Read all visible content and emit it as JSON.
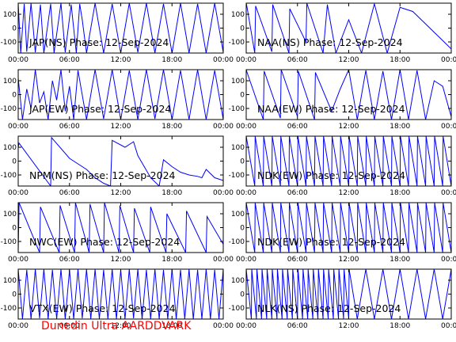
{
  "footer": "Dunedin Ultra AARDDVARK",
  "colors": {
    "trace": "#0000ff",
    "frame": "#000000",
    "footer": "#ff0000"
  },
  "chart_data": [
    {
      "type": "line",
      "title": "JAP(NS) Phase: 12-Sep-2024",
      "x_ticks": [
        "00:00",
        "06:00",
        "12:00",
        "18:00",
        "00:00"
      ],
      "y_ticks": [
        "100",
        "0",
        "-100"
      ],
      "xlim_hours": [
        0,
        24
      ],
      "ylim": [
        -180,
        180
      ],
      "series": [
        {
          "x_hours": [
            0,
            0.3,
            0.7,
            1.0,
            1.5,
            2.0,
            2.6,
            3.0,
            3.8,
            4.2,
            5.0,
            5.5,
            6.2,
            6.8,
            7.2,
            7.5,
            8.0,
            9.0,
            10.0,
            11.0,
            12.0,
            13.0,
            14.0,
            15.0,
            16.0,
            17.0,
            18.0,
            19.0,
            20.0,
            21.0,
            22.0,
            23.0,
            24.0
          ],
          "values": [
            180,
            -180,
            175,
            -170,
            180,
            -175,
            170,
            -180,
            175,
            -180,
            180,
            -175,
            170,
            -180,
            175,
            60,
            -180,
            180,
            -180,
            175,
            -180,
            180,
            -175,
            180,
            -180,
            175,
            -180,
            180,
            -180,
            175,
            -180,
            180,
            -175
          ]
        }
      ]
    },
    {
      "type": "line",
      "title": "NAA(NS) Phase: 12-Sep-2024",
      "x_ticks": [
        "00:00",
        "06:00",
        "12:00",
        "18:00",
        "00:00"
      ],
      "y_ticks": [
        "100",
        "0",
        "-100"
      ],
      "xlim_hours": [
        0,
        24
      ],
      "ylim": [
        -180,
        180
      ],
      "series": [
        {
          "x_hours": [
            0,
            0.1,
            1.0,
            1.1,
            3.0,
            3.1,
            5.0,
            5.1,
            7.0,
            7.1,
            9.0,
            9.5,
            10.5,
            12.0,
            13.5,
            15.0,
            16.5,
            18.0,
            19.5,
            20.5,
            21.5,
            22.5,
            23.5,
            24.0
          ],
          "values": [
            180,
            150,
            -180,
            160,
            -170,
            170,
            -180,
            140,
            -100,
            180,
            -180,
            170,
            -180,
            60,
            -180,
            175,
            -180,
            150,
            120,
            60,
            0,
            -60,
            -120,
            -150
          ]
        }
      ]
    },
    {
      "type": "line",
      "title": "JAP(EW) Phase: 12-Sep-2024",
      "x_ticks": [
        "00:00",
        "06:00",
        "12:00",
        "18:00",
        "00:00"
      ],
      "y_ticks": [
        "100",
        "0",
        "-100"
      ],
      "xlim_hours": [
        0,
        24
      ],
      "ylim": [
        -180,
        180
      ],
      "series": [
        {
          "x_hours": [
            0,
            0.5,
            1.0,
            1.5,
            2.0,
            2.5,
            3.0,
            3.5,
            4.0,
            4.5,
            5.0,
            5.5,
            6.0,
            6.5,
            7.0,
            8.0,
            9.0,
            10.0,
            11.0,
            12.0,
            13.0,
            14.0,
            15.0,
            16.0,
            17.0,
            18.0,
            19.0,
            20.0,
            21.0,
            22.0,
            23.0,
            24.0
          ],
          "values": [
            120,
            -180,
            40,
            -100,
            180,
            -60,
            20,
            -180,
            100,
            -40,
            180,
            -120,
            60,
            -180,
            175,
            -180,
            180,
            -175,
            180,
            -180,
            175,
            -180,
            180,
            -175,
            180,
            -180,
            175,
            -180,
            180,
            -180,
            175,
            -180
          ]
        }
      ]
    },
    {
      "type": "line",
      "title": "NAA(EW) Phase: 12-Sep-2024",
      "x_ticks": [
        "00:00",
        "06:00",
        "12:00",
        "18:00",
        "00:00"
      ],
      "y_ticks": [
        "100",
        "0",
        "-100"
      ],
      "xlim_hours": [
        0,
        24
      ],
      "ylim": [
        -180,
        180
      ],
      "series": [
        {
          "x_hours": [
            0,
            0.1,
            2.0,
            2.1,
            4.0,
            4.1,
            6.0,
            6.1,
            8.0,
            8.1,
            10.0,
            11.0,
            12.0,
            13.0,
            14.0,
            15.0,
            16.0,
            17.0,
            18.0,
            19.0,
            20.0,
            21.0,
            22.0,
            23.0,
            24.0
          ],
          "values": [
            180,
            160,
            -180,
            170,
            -170,
            180,
            -160,
            170,
            -180,
            160,
            -120,
            40,
            180,
            -180,
            175,
            -180,
            170,
            -180,
            180,
            -180,
            175,
            -180,
            100,
            60,
            -160
          ]
        }
      ]
    },
    {
      "type": "line",
      "title": "NPM(NS) Phase: 12-Sep-2024",
      "x_ticks": [
        "00:00",
        "06:00",
        "12:00",
        "18:00",
        "00:00"
      ],
      "y_ticks": [
        "100",
        "0",
        "-100"
      ],
      "xlim_hours": [
        0,
        24
      ],
      "ylim": [
        -180,
        180
      ],
      "series": [
        {
          "x_hours": [
            0,
            0.1,
            3.8,
            3.9,
            6.0,
            6.5,
            8.0,
            9.0,
            10.0,
            10.8,
            11.0,
            12.5,
            13.5,
            14.0,
            15.5,
            16.5,
            17.0,
            18.0,
            19.0,
            20.0,
            21.0,
            21.5,
            22.0,
            23.0,
            24.0
          ],
          "values": [
            100,
            130,
            -180,
            170,
            20,
            0,
            -60,
            -120,
            -160,
            -180,
            150,
            100,
            140,
            40,
            -120,
            -180,
            10,
            -40,
            -80,
            -100,
            -110,
            -120,
            -60,
            -120,
            -140
          ]
        }
      ]
    },
    {
      "type": "line",
      "title": "NDK(EW) Phase: 12-Sep-2024",
      "x_ticks": [
        "00:00",
        "06:00",
        "12:00",
        "18:00",
        "00:00"
      ],
      "y_ticks": [
        "100",
        "0",
        "-100"
      ],
      "xlim_hours": [
        0,
        24
      ],
      "ylim": [
        -180,
        180
      ],
      "series": [
        {
          "x_hours": [
            0,
            1.0,
            1.05,
            2.0,
            2.05,
            3.0,
            3.05,
            4.0,
            4.05,
            5.0,
            5.05,
            6.0,
            6.05,
            7.0,
            7.05,
            8.0,
            8.05,
            9.0,
            9.05,
            10.0,
            10.05,
            11.0,
            11.05,
            12.0,
            12.05,
            13.0,
            13.05,
            14.0,
            14.05,
            15.0,
            15.05,
            16.0,
            16.05,
            17.0,
            17.05,
            18.0,
            18.05,
            19.0,
            19.05,
            20.0,
            20.05,
            21.0,
            21.05,
            22.0,
            22.05,
            23.0,
            23.05,
            24.0
          ],
          "values": [
            180,
            -180,
            180,
            -180,
            180,
            -180,
            180,
            -180,
            180,
            -180,
            180,
            -180,
            180,
            -180,
            180,
            -180,
            180,
            -180,
            180,
            -180,
            180,
            -180,
            180,
            -180,
            180,
            -180,
            180,
            -180,
            180,
            -180,
            180,
            -180,
            180,
            -180,
            180,
            -180,
            180,
            -180,
            180,
            -180,
            180,
            -180,
            180,
            -180,
            180,
            -180,
            180,
            -180
          ]
        }
      ]
    },
    {
      "type": "line",
      "title": "NWC(EW) Phase: 12-Sep-2024",
      "x_ticks": [
        "00:00",
        "06:00",
        "12:00",
        "18:00",
        "00:00"
      ],
      "y_ticks": [
        "100",
        "0",
        "-100"
      ],
      "xlim_hours": [
        0,
        24
      ],
      "ylim": [
        -180,
        180
      ],
      "series": [
        {
          "x_hours": [
            0,
            0.1,
            2.5,
            2.6,
            4.8,
            4.9,
            6.6,
            6.7,
            8.3,
            8.4,
            10.0,
            10.1,
            11.8,
            11.9,
            13.5,
            13.6,
            15.4,
            15.5,
            17.3,
            17.4,
            19.6,
            19.7,
            22.0,
            22.1,
            24.0
          ],
          "values": [
            -180,
            180,
            -180,
            150,
            -180,
            160,
            -180,
            180,
            -180,
            170,
            -180,
            180,
            -180,
            160,
            -180,
            140,
            -180,
            150,
            -180,
            100,
            -180,
            120,
            -180,
            80,
            -120
          ]
        }
      ]
    },
    {
      "type": "line",
      "title": "NDK(EW) Phase: 12-Sep-2024",
      "x_ticks": [
        "00:00",
        "06:00",
        "12:00",
        "18:00",
        "00:00"
      ],
      "y_ticks": [
        "100",
        "0",
        "-100"
      ],
      "xlim_hours": [
        0,
        24
      ],
      "ylim": [
        -180,
        180
      ],
      "series": [
        {
          "x_hours": [
            0,
            1.0,
            1.05,
            2.0,
            2.05,
            3.0,
            3.05,
            4.0,
            4.05,
            5.0,
            5.05,
            6.0,
            6.05,
            7.0,
            7.05,
            8.0,
            8.05,
            9.0,
            9.05,
            10.0,
            10.05,
            11.0,
            11.05,
            12.0,
            12.05,
            13.0,
            13.05,
            14.0,
            14.05,
            15.0,
            15.05,
            16.0,
            16.05,
            17.0,
            17.05,
            18.0,
            18.05,
            19.0,
            19.05,
            20.0,
            20.05,
            21.0,
            21.05,
            22.0,
            22.05,
            23.0,
            23.05,
            24.0
          ],
          "values": [
            180,
            -180,
            180,
            -180,
            180,
            -180,
            180,
            -180,
            180,
            -180,
            180,
            -180,
            180,
            -180,
            180,
            -180,
            180,
            -180,
            180,
            -180,
            180,
            -180,
            180,
            -180,
            180,
            -180,
            180,
            -180,
            180,
            -180,
            180,
            -180,
            180,
            -180,
            180,
            -180,
            180,
            -180,
            180,
            -180,
            180,
            -180,
            180,
            -180,
            180,
            -180,
            180,
            -180
          ]
        }
      ]
    },
    {
      "type": "line",
      "title": "VTX(EW) Phase: 12-Sep-2024",
      "x_ticks": [
        "00:00",
        "06:00",
        "12:00",
        "18:00",
        "00:00"
      ],
      "y_ticks": [
        "100",
        "0",
        "-100"
      ],
      "xlim_hours": [
        0,
        24
      ],
      "ylim": [
        -180,
        180
      ],
      "series": [
        {
          "x_hours": [
            0,
            0.5,
            1.0,
            1.5,
            2.0,
            2.5,
            3.0,
            3.5,
            4.0,
            4.5,
            5.0,
            5.5,
            6.0,
            6.5,
            7.0,
            7.5,
            8.0,
            8.5,
            9.0,
            9.5,
            10.0,
            10.5,
            11.0,
            11.5,
            12.0,
            12.5,
            13.0,
            13.5,
            14.0,
            14.5,
            15.0,
            15.5,
            16.0,
            16.5,
            17.0,
            17.5,
            18.0,
            18.5,
            19.0,
            19.5,
            20.0,
            20.5,
            21.0,
            21.5,
            22.0,
            22.5,
            23.0,
            23.5,
            24.0
          ],
          "values": [
            180,
            -180,
            175,
            -180,
            180,
            -175,
            180,
            -180,
            175,
            -180,
            180,
            -180,
            175,
            -180,
            180,
            -175,
            180,
            -180,
            180,
            -180,
            175,
            -180,
            180,
            -180,
            175,
            -180,
            180,
            -175,
            180,
            -180,
            175,
            -180,
            180,
            -180,
            175,
            -180,
            180,
            -180,
            175,
            -180,
            180,
            -180,
            175,
            -180,
            180,
            -180,
            175,
            -180,
            180
          ]
        }
      ]
    },
    {
      "type": "line",
      "title": "NLK(NS) Phase: 12-Sep-2024",
      "x_ticks": [
        "00:00",
        "06:00",
        "12:00",
        "18:00",
        "00:00"
      ],
      "y_ticks": [
        "100",
        "0",
        "-100"
      ],
      "xlim_hours": [
        0,
        24
      ],
      "ylim": [
        -180,
        180
      ],
      "series": [
        {
          "x_hours": [
            0,
            0.6,
            0.65,
            1.2,
            1.25,
            1.8,
            1.85,
            2.4,
            2.45,
            3.0,
            3.05,
            3.6,
            3.65,
            4.2,
            4.25,
            4.8,
            4.85,
            5.4,
            5.45,
            6.0,
            6.05,
            6.6,
            6.65,
            7.2,
            7.25,
            7.8,
            7.85,
            8.4,
            8.45,
            9.0,
            9.05,
            9.6,
            9.65,
            10.2,
            10.25,
            10.8,
            10.85,
            11.4,
            11.45,
            12.0,
            12.05,
            13.0,
            14.0,
            15.0,
            16.0,
            17.0,
            18.0,
            19.0,
            20.0,
            21.0,
            22.0,
            23.0,
            24.0
          ],
          "values": [
            180,
            -180,
            180,
            -180,
            180,
            -180,
            180,
            -180,
            180,
            -180,
            180,
            -180,
            180,
            -180,
            180,
            -180,
            180,
            -180,
            180,
            -180,
            180,
            -180,
            180,
            -180,
            180,
            -180,
            180,
            -180,
            180,
            -180,
            180,
            -180,
            180,
            -180,
            180,
            -180,
            180,
            -180,
            180,
            -180,
            180,
            -180,
            180,
            -180,
            180,
            -180,
            180,
            -180,
            180,
            -180,
            180,
            -180,
            180
          ]
        }
      ]
    }
  ]
}
